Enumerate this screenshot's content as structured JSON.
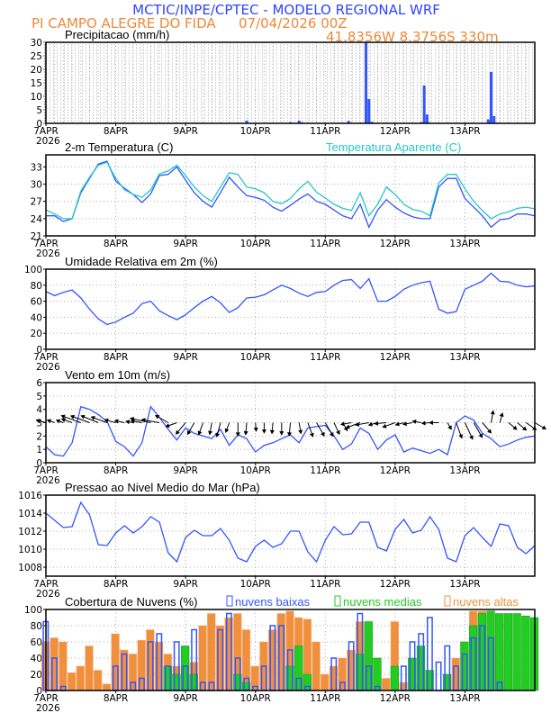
{
  "header": {
    "title": "MCTIC/INPE/CPTEC - MODELO REGIONAL WRF",
    "station": "PI CAMPO ALEGRE DO FIDA",
    "run": "07/04/2026 00Z",
    "location": "41.8356W 8.3756S 330m"
  },
  "colors": {
    "title": "#2d45ff",
    "station": "#f0883a",
    "series_blue": "#3355ff",
    "apparent_temp": "#22c8c8",
    "high_clouds": "#f0903c",
    "medium_clouds": "#22cc22",
    "low_clouds": "#3355ff",
    "wind_arrows": "#000000"
  },
  "x_axis": {
    "day_labels": [
      "7APR",
      "8APR",
      "9APR",
      "10APR",
      "11APR",
      "12APR",
      "13APR"
    ],
    "year_label": "2026",
    "hours": [
      0,
      3,
      6,
      9,
      12,
      15,
      18,
      21,
      24,
      27,
      30,
      33,
      36,
      39,
      42,
      45,
      48,
      51,
      54,
      57,
      60,
      63,
      66,
      69,
      72,
      75,
      78,
      81,
      84,
      87,
      90,
      93,
      96,
      99,
      102,
      105,
      108,
      111,
      114,
      117,
      120,
      123,
      126,
      129,
      132,
      135,
      138,
      141,
      144,
      147,
      150,
      153,
      156,
      159,
      162,
      165,
      168
    ]
  },
  "chart_data": [
    {
      "id": "precip",
      "type": "bar",
      "title": "Precipitacao (mm/h)",
      "ylim": [
        0,
        30
      ],
      "grid": true,
      "bars": [
        {
          "hour": 44,
          "value": 0.2
        },
        {
          "hour": 69,
          "value": 1.0
        },
        {
          "hour": 84,
          "value": 0.4
        },
        {
          "hour": 87,
          "value": 1.0
        },
        {
          "hour": 88,
          "value": 0.4
        },
        {
          "hour": 104,
          "value": 0.9
        },
        {
          "hour": 110,
          "value": 30
        },
        {
          "hour": 111,
          "value": 9
        },
        {
          "hour": 112,
          "value": 0.6
        },
        {
          "hour": 129,
          "value": 0.4
        },
        {
          "hour": 130,
          "value": 14
        },
        {
          "hour": 131,
          "value": 3.3
        },
        {
          "hour": 152,
          "value": 1.5
        },
        {
          "hour": 153,
          "value": 19
        },
        {
          "hour": 154,
          "value": 2.7
        },
        {
          "hour": 155,
          "value": 0.3
        }
      ]
    },
    {
      "id": "temperature",
      "type": "line",
      "title": "2-m Temperatura (C)",
      "ylim": [
        21,
        35.1
      ],
      "yticks": [
        21,
        24,
        27,
        30,
        33
      ],
      "grid": true,
      "series": [
        {
          "id": "temp",
          "values": [
            24.5,
            24.5,
            23.5,
            24,
            28.5,
            31,
            33.5,
            34,
            30.5,
            29.3,
            28.2,
            26.8,
            28.3,
            31.5,
            31.7,
            33,
            30.7,
            28.5,
            27,
            26,
            28.5,
            31.2,
            29.5,
            28,
            27.7,
            27.2,
            26,
            25.3,
            26.3,
            27.4,
            28.3,
            27,
            26.5,
            25.5,
            24.5,
            24,
            26.5,
            22.5,
            25.5,
            27.3,
            26,
            25,
            24.3,
            24,
            24,
            29.5,
            31,
            31,
            27.5,
            26,
            24.5,
            22.5,
            23.8,
            24,
            24.8,
            24.8,
            24.5
          ]
        },
        {
          "id": "apparent",
          "name": "Temperatura Aparente (C)",
          "values": [
            25.5,
            24.8,
            24,
            24,
            28.8,
            31.2,
            33.3,
            33.8,
            31,
            29,
            28.2,
            27.7,
            29,
            31.8,
            32.3,
            33.3,
            31.5,
            29.5,
            28,
            27,
            29.5,
            32,
            31.7,
            29.5,
            29.2,
            28.5,
            27,
            26.6,
            27.5,
            29.2,
            30.5,
            28.6,
            27.6,
            26.5,
            25.8,
            25.4,
            28.5,
            24.5,
            26.5,
            29.5,
            28.2,
            26.5,
            25.6,
            25.3,
            24.5,
            30.2,
            31.7,
            31.7,
            29.2,
            27,
            25.4,
            24,
            24.8,
            25.2,
            25.8,
            26,
            25.7
          ]
        }
      ]
    },
    {
      "id": "humidity",
      "type": "line",
      "title": "Umidade Relativa em 2m (%)",
      "ylim": [
        0,
        100
      ],
      "yticks": [
        0,
        20,
        40,
        60,
        80,
        100
      ],
      "grid": true,
      "series": [
        {
          "id": "rh",
          "values": [
            72,
            67,
            71,
            74,
            64,
            50,
            38,
            31,
            34,
            40,
            45,
            57,
            60,
            48,
            42,
            37,
            43,
            52,
            60,
            66,
            58,
            46,
            52,
            64,
            65,
            68,
            74,
            80,
            76,
            70,
            66,
            71,
            72,
            80,
            86,
            87,
            76,
            88,
            60,
            60,
            66,
            75,
            80,
            83,
            85,
            50,
            45,
            47,
            75,
            80,
            85,
            95,
            85,
            84,
            80,
            78,
            79
          ]
        }
      ]
    },
    {
      "id": "wind",
      "type": "line",
      "title": "Vento em 10m (m/s)",
      "ylim": [
        0,
        6
      ],
      "yticks": [
        0,
        1,
        2,
        3,
        4,
        5,
        6
      ],
      "grid": true,
      "series": [
        {
          "id": "speed",
          "values": [
            1.2,
            0.6,
            0.5,
            1.5,
            4.2,
            4.0,
            3.6,
            3.1,
            1.6,
            1.2,
            0.5,
            1.5,
            4.2,
            3.4,
            2.5,
            1.7,
            2.6,
            2.2,
            2.0,
            1.8,
            2.5,
            1.3,
            2.1,
            1.8,
            0.8,
            1.3,
            1.5,
            1.8,
            2.1,
            1.5,
            2.6,
            2.7,
            2.8,
            2.0,
            1.0,
            1.4,
            2.6,
            2.2,
            1.0,
            1.7,
            2.1,
            0.8,
            1.1,
            0.9,
            0.7,
            1.0,
            0.6,
            3.0,
            3.5,
            3.2,
            2.2,
            1.8,
            1.2,
            1.4,
            1.7,
            1.9,
            2.0
          ]
        }
      ],
      "arrow_baseline": 3,
      "arrow_direction_deg": [
        165,
        160,
        160,
        160,
        160,
        160,
        158,
        160,
        165,
        168,
        170,
        170,
        168,
        170,
        150,
        200,
        230,
        240,
        250,
        260,
        255,
        250,
        270,
        265,
        275,
        270,
        265,
        270,
        265,
        280,
        290,
        300,
        300,
        295,
        300,
        190,
        200,
        190,
        195,
        185,
        200,
        195,
        190,
        170,
        185,
        180,
        300,
        290,
        295,
        300,
        310,
        80,
        75,
        320,
        320,
        325,
        330
      ]
    },
    {
      "id": "pressure",
      "type": "line",
      "title": "Pressao ao Nivel Medio do Mar (hPa)",
      "ylim": [
        1007,
        1016
      ],
      "yticks": [
        1008,
        1010,
        1012,
        1014,
        1016
      ],
      "grid": true,
      "series": [
        {
          "id": "mslp",
          "values": [
            1014,
            1013.2,
            1012.4,
            1012.5,
            1015.2,
            1013.8,
            1010.5,
            1010.4,
            1011.8,
            1012.6,
            1011.8,
            1012.5,
            1013.6,
            1013,
            1009.6,
            1008.6,
            1011.3,
            1012.1,
            1011.5,
            1011.5,
            1012.3,
            1011,
            1009,
            1008.6,
            1010.3,
            1011,
            1010.2,
            1010.6,
            1012,
            1012,
            1009.7,
            1008.6,
            1011,
            1012.5,
            1011.6,
            1011.7,
            1013,
            1013,
            1010.2,
            1009.8,
            1012.2,
            1013.3,
            1011.8,
            1012.1,
            1013.6,
            1012.2,
            1009,
            1008.6,
            1011.5,
            1012.4,
            1011.3,
            1010.3,
            1012.8,
            1012.6,
            1010.2,
            1009.5,
            1010.4
          ]
        }
      ]
    },
    {
      "id": "clouds",
      "type": "bar",
      "title": "Cobertura de Nuvens (%)",
      "ylim": [
        0,
        100
      ],
      "yticks": [
        0,
        20,
        40,
        60,
        80,
        100
      ],
      "grid": true,
      "legend_placement": "top",
      "series": [
        {
          "id": "high",
          "name": "nuvens altas",
          "values": [
            60,
            65,
            60,
            22,
            30,
            55,
            25,
            8,
            70,
            50,
            45,
            62,
            75,
            60,
            45,
            30,
            20,
            35,
            80,
            95,
            80,
            90,
            95,
            75,
            30,
            60,
            75,
            95,
            98,
            90,
            88,
            60,
            20,
            30,
            40,
            50,
            85,
            70,
            40,
            15,
            85,
            10,
            0,
            10,
            0,
            0,
            15,
            40,
            60,
            98,
            98,
            95,
            60,
            20,
            5,
            0,
            0
          ]
        },
        {
          "id": "medium",
          "name": "nuvens medias",
          "values": [
            0,
            0,
            0,
            0,
            0,
            0,
            0,
            0,
            0,
            0,
            0,
            0,
            0,
            0,
            30,
            20,
            55,
            20,
            0,
            0,
            0,
            0,
            20,
            10,
            0,
            0,
            0,
            0,
            30,
            55,
            20,
            0,
            0,
            0,
            0,
            0,
            45,
            85,
            40,
            0,
            30,
            0,
            40,
            55,
            25,
            0,
            20,
            0,
            60,
            80,
            95,
            98,
            95,
            95,
            95,
            92,
            90
          ]
        },
        {
          "id": "low",
          "name": "nuvens baixas",
          "values": [
            85,
            40,
            5,
            0,
            0,
            0,
            0,
            0,
            30,
            45,
            10,
            15,
            60,
            70,
            30,
            60,
            30,
            75,
            10,
            10,
            75,
            95,
            40,
            15,
            5,
            30,
            80,
            80,
            50,
            15,
            5,
            0,
            0,
            40,
            10,
            60,
            95,
            30,
            5,
            0,
            0,
            30,
            60,
            70,
            90,
            35,
            55,
            30,
            45,
            65,
            80,
            65,
            10,
            0,
            0,
            0,
            0
          ]
        }
      ]
    }
  ]
}
